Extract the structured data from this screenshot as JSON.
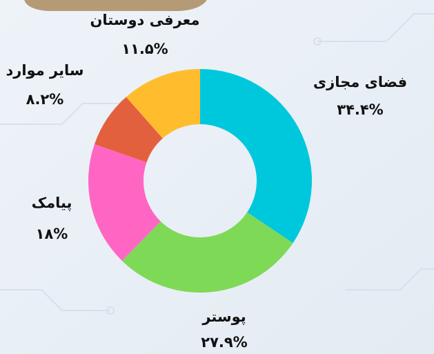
{
  "chart_data": {
    "type": "donut",
    "categories": [
      "فضای مجازی",
      "پوستر",
      "پیامک",
      "سایر موارد",
      "معرفی دوستان"
    ],
    "values": [
      34.4,
      27.9,
      18,
      8.2,
      11.5
    ],
    "value_labels": [
      "۳۴.۴%",
      "۲۷.۹%",
      "۱۸%",
      "۸.۲%",
      "۱۱.۵%"
    ],
    "colors": [
      "#00c8dc",
      "#7ed957",
      "#ff66c4",
      "#e2603e",
      "#ffbd2e"
    ]
  }
}
